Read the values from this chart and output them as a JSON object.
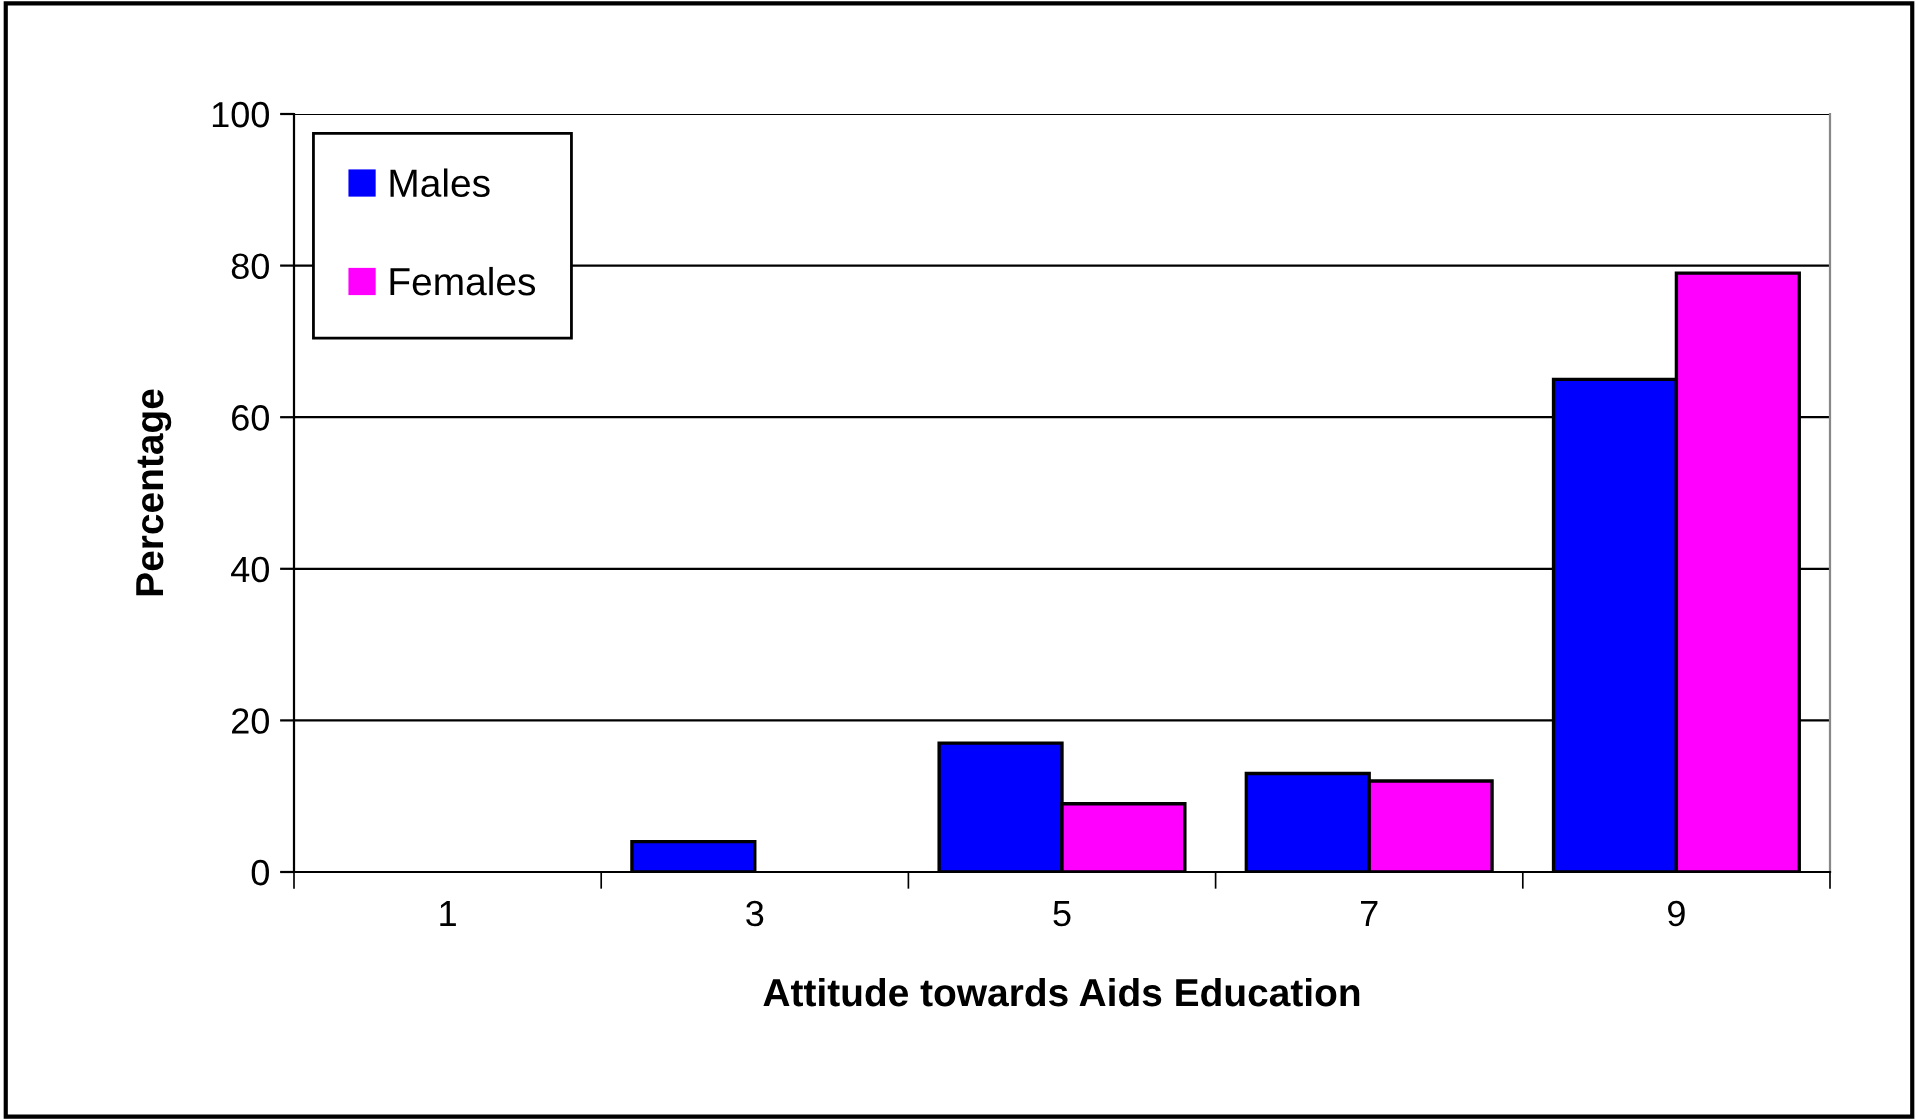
{
  "chart_data": {
    "type": "bar",
    "xlabel": "Attitude towards Aids Education",
    "ylabel": "Percentage",
    "categories": [
      "1",
      "3",
      "5",
      "7",
      "9"
    ],
    "series": [
      {
        "name": "Males",
        "color": "#0000ff",
        "values": [
          0,
          4,
          17,
          13,
          65
        ]
      },
      {
        "name": "Females",
        "color": "#ff00ff",
        "values": [
          0,
          0,
          9,
          12,
          79
        ]
      }
    ],
    "ylim": [
      0,
      100
    ],
    "yticks": [
      0,
      20,
      40,
      60,
      80,
      100
    ],
    "grid": "y",
    "legend": "top left"
  }
}
